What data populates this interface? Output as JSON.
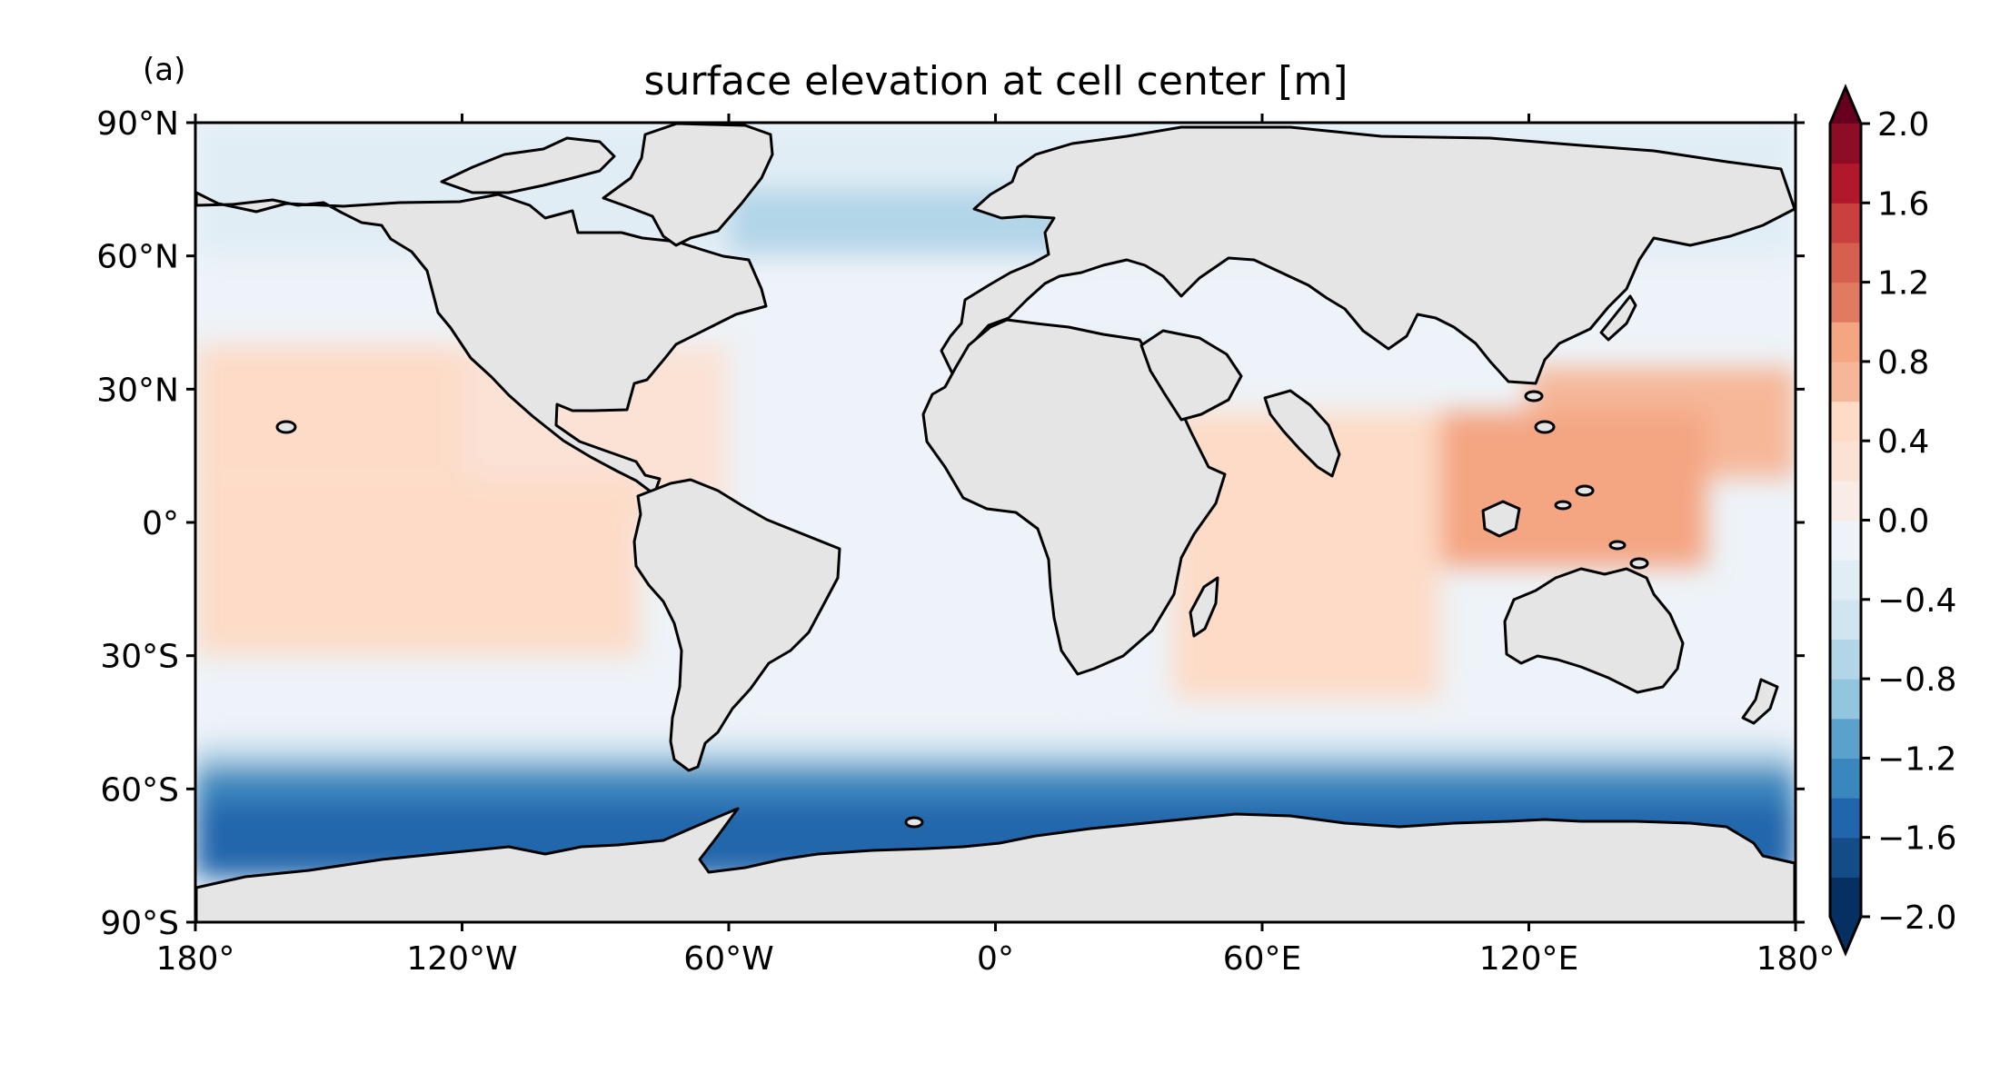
{
  "panel_label": "(a)",
  "title": "surface elevation at cell center [m]",
  "colors": {
    "land": "#e5e5e5",
    "coast": "#000000",
    "frame": "#000000"
  },
  "chart_data": {
    "type": "heatmap",
    "title": "surface elevation at cell center [m]",
    "panel_label": "(a)",
    "projection": "plate carree",
    "xlim": [
      -180,
      180
    ],
    "ylim": [
      -90,
      90
    ],
    "x_ticks": [
      {
        "value": -180,
        "label": "180°"
      },
      {
        "value": -120,
        "label": "120°W"
      },
      {
        "value": -60,
        "label": "60°W"
      },
      {
        "value": 0,
        "label": "0°"
      },
      {
        "value": 60,
        "label": "60°E"
      },
      {
        "value": 120,
        "label": "120°E"
      },
      {
        "value": 180,
        "label": "180°"
      }
    ],
    "y_ticks": [
      {
        "value": 90,
        "label": "90°N"
      },
      {
        "value": 60,
        "label": "60°N"
      },
      {
        "value": 30,
        "label": "30°N"
      },
      {
        "value": 0,
        "label": "0°"
      },
      {
        "value": -30,
        "label": "30°S"
      },
      {
        "value": -60,
        "label": "60°S"
      },
      {
        "value": -90,
        "label": "90°S"
      }
    ],
    "colorbar": {
      "min": -2.0,
      "max": 2.0,
      "extend": "both",
      "levels": [
        -2.0,
        -1.8,
        -1.6,
        -1.4,
        -1.2,
        -1.0,
        -0.8,
        -0.6,
        -0.4,
        -0.2,
        0.0,
        0.2,
        0.4,
        0.6,
        0.8,
        1.0,
        1.2,
        1.4,
        1.6,
        1.8,
        2.0
      ],
      "colors": [
        "#053061",
        "#134c87",
        "#2166ac",
        "#3a87bd",
        "#5aa1cc",
        "#92c5de",
        "#b2d5e8",
        "#d1e5f0",
        "#e1edf5",
        "#edf3f8",
        "#f9ece6",
        "#fbe2d5",
        "#fddbc7",
        "#f6b799",
        "#f4a582",
        "#e07b62",
        "#d6604d",
        "#c8413e",
        "#b2182b",
        "#8c0d25"
      ],
      "under_color": "#053061",
      "over_color": "#67001f",
      "tick_labels": [
        {
          "value": 2.0,
          "label": "2.0"
        },
        {
          "value": 1.6,
          "label": "1.6"
        },
        {
          "value": 1.2,
          "label": "1.2"
        },
        {
          "value": 0.8,
          "label": "0.8"
        },
        {
          "value": 0.4,
          "label": "0.4"
        },
        {
          "value": 0.0,
          "label": "0.0"
        },
        {
          "value": -0.4,
          "label": "−0.4"
        },
        {
          "value": -0.8,
          "label": "−0.8"
        },
        {
          "value": -1.2,
          "label": "−1.2"
        },
        {
          "value": -1.6,
          "label": "−1.6"
        },
        {
          "value": -2.0,
          "label": "−2.0"
        }
      ]
    },
    "field_bands": [
      {
        "lat": [
          60,
          90
        ],
        "lon": [
          -180,
          180
        ],
        "value": -0.3
      },
      {
        "lat": [
          50,
          75
        ],
        "lon": [
          -60,
          20
        ],
        "value": -0.7
      },
      {
        "lat": [
          30,
          45
        ],
        "lon": [
          -5,
          40
        ],
        "value": -0.5
      },
      {
        "lat": [
          40,
          60
        ],
        "lon": [
          -180,
          180
        ],
        "value": -0.1
      },
      {
        "lat": [
          10,
          40
        ],
        "lon": [
          -180,
          -120
        ],
        "value": 0.5
      },
      {
        "lat": [
          0,
          40
        ],
        "lon": [
          -120,
          -60
        ],
        "value": 0.2
      },
      {
        "lat": [
          -40,
          40
        ],
        "lon": [
          -60,
          20
        ],
        "value": -0.1
      },
      {
        "lat": [
          -40,
          25
        ],
        "lon": [
          40,
          100
        ],
        "value": 0.4
      },
      {
        "lat": [
          10,
          35
        ],
        "lon": [
          120,
          180
        ],
        "value": 0.7
      },
      {
        "lat": [
          -10,
          25
        ],
        "lon": [
          100,
          160
        ],
        "value": 0.9
      },
      {
        "lat": [
          -30,
          10
        ],
        "lon": [
          -180,
          -80
        ],
        "value": 0.4
      },
      {
        "lat": [
          -50,
          -40
        ],
        "lon": [
          -180,
          180
        ],
        "value": -0.2
      },
      {
        "lat": [
          -55,
          -50
        ],
        "lon": [
          -180,
          180
        ],
        "value": -0.8
      },
      {
        "lat": [
          -63,
          -55
        ],
        "lon": [
          -180,
          180
        ],
        "value": -1.3
      },
      {
        "lat": [
          -80,
          -63
        ],
        "lon": [
          -180,
          180
        ],
        "value": -1.6
      }
    ]
  }
}
